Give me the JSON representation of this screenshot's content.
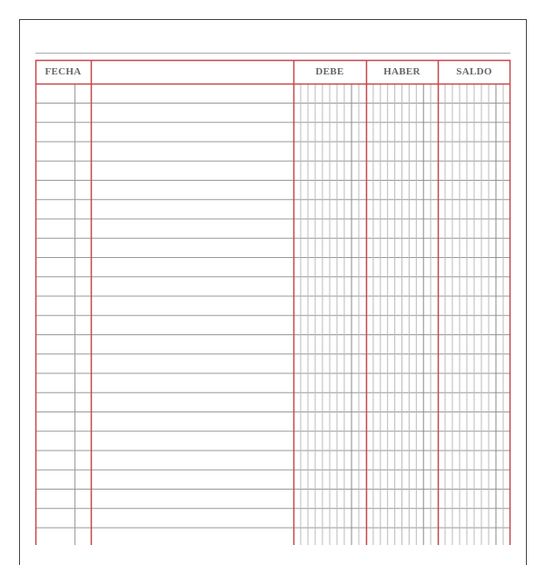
{
  "ledger": {
    "headers": {
      "date": "FECHA",
      "description": "",
      "debit": "DEBE",
      "credit": "HABER",
      "balance": "SALDO"
    },
    "colors": {
      "frame": "#c8474a",
      "rule": "#9a9a9a",
      "header_text": "#666666"
    }
  }
}
